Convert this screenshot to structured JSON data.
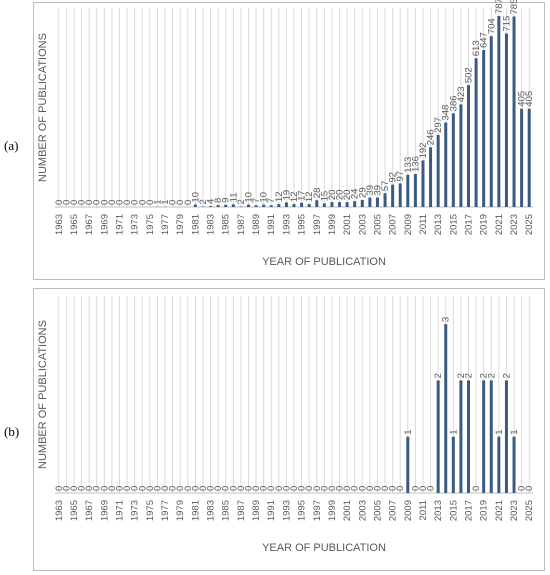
{
  "panel_labels": [
    "(a)",
    "(b)"
  ],
  "chart_data": [
    {
      "type": "bar",
      "xlabel": "YEAR OF PUBLICATION",
      "ylabel": "NUMBER OF PUBLICATIONS",
      "categories": [
        "1963",
        "1964",
        "1965",
        "1966",
        "1967",
        "1968",
        "1969",
        "1970",
        "1971",
        "1972",
        "1973",
        "1974",
        "1975",
        "1976",
        "1977",
        "1978",
        "1979",
        "1980",
        "1981",
        "1982",
        "1983",
        "1984",
        "1985",
        "1986",
        "1987",
        "1988",
        "1989",
        "1990",
        "1991",
        "1992",
        "1993",
        "1994",
        "1995",
        "1996",
        "1997",
        "1998",
        "1999",
        "2000",
        "2001",
        "2002",
        "2003",
        "2004",
        "2005",
        "2006",
        "2007",
        "2008",
        "2009",
        "2010",
        "2011",
        "2012",
        "2013",
        "2014",
        "2015",
        "2016",
        "2017",
        "2018",
        "2019",
        "2020",
        "2021",
        "2022",
        "2023",
        "2024",
        "2025"
      ],
      "tick_labels": [
        "1963",
        "1965",
        "1967",
        "1969",
        "1971",
        "1973",
        "1975",
        "1977",
        "1979",
        "1981",
        "1983",
        "1985",
        "1987",
        "1989",
        "1991",
        "1993",
        "1995",
        "1997",
        "1999",
        "2001",
        "2003",
        "2005",
        "2007",
        "2009",
        "2011",
        "2013",
        "2015",
        "2017",
        "2019",
        "2021",
        "2023",
        "2025"
      ],
      "values": [
        0,
        0,
        0,
        0,
        0,
        0,
        0,
        0,
        0,
        0,
        0,
        0,
        0,
        1,
        1,
        0,
        0,
        0,
        10,
        2,
        4,
        8,
        9,
        11,
        2,
        10,
        7,
        10,
        7,
        12,
        19,
        12,
        17,
        12,
        28,
        15,
        20,
        20,
        20,
        24,
        29,
        39,
        39,
        57,
        92,
        97,
        133,
        136,
        192,
        246,
        297,
        348,
        386,
        423,
        502,
        613,
        647,
        704,
        787,
        715,
        785,
        405,
        405
      ],
      "ylim": [
        0,
        820
      ],
      "bar_color": "#3b5a80",
      "grid": true
    },
    {
      "type": "bar",
      "xlabel": "YEAR OF PUBLICATION",
      "ylabel": "NUMBER OF PUBLICATIONS",
      "categories": [
        "1963",
        "1964",
        "1965",
        "1966",
        "1967",
        "1968",
        "1969",
        "1970",
        "1971",
        "1972",
        "1973",
        "1974",
        "1975",
        "1976",
        "1977",
        "1978",
        "1979",
        "1980",
        "1981",
        "1982",
        "1983",
        "1984",
        "1985",
        "1986",
        "1987",
        "1988",
        "1989",
        "1990",
        "1991",
        "1992",
        "1993",
        "1994",
        "1995",
        "1996",
        "1997",
        "1998",
        "1999",
        "2000",
        "2001",
        "2002",
        "2003",
        "2004",
        "2005",
        "2006",
        "2007",
        "2008",
        "2009",
        "2010",
        "2011",
        "2012",
        "2013",
        "2014",
        "2015",
        "2016",
        "2017",
        "2018",
        "2019",
        "2020",
        "2021",
        "2022",
        "2023",
        "2024",
        "2025"
      ],
      "tick_labels": [
        "1963",
        "1965",
        "1967",
        "1969",
        "1971",
        "1973",
        "1975",
        "1977",
        "1979",
        "1981",
        "1983",
        "1985",
        "1987",
        "1989",
        "1991",
        "1993",
        "1995",
        "1997",
        "1999",
        "2001",
        "2003",
        "2005",
        "2007",
        "2009",
        "2011",
        "2013",
        "2015",
        "2017",
        "2019",
        "2021",
        "2023",
        "2025"
      ],
      "values": [
        0,
        0,
        0,
        0,
        0,
        0,
        0,
        0,
        0,
        0,
        0,
        0,
        0,
        0,
        0,
        0,
        0,
        0,
        0,
        0,
        0,
        0,
        0,
        0,
        0,
        0,
        0,
        0,
        0,
        0,
        0,
        0,
        0,
        0,
        0,
        0,
        0,
        0,
        0,
        0,
        0,
        0,
        0,
        0,
        0,
        0,
        1,
        0,
        0,
        0,
        2,
        3,
        1,
        2,
        2,
        0,
        2,
        2,
        1,
        2,
        1,
        0,
        0
      ],
      "ylim": [
        0,
        3.5
      ],
      "bar_color": "#3b5a80",
      "grid": true
    }
  ]
}
